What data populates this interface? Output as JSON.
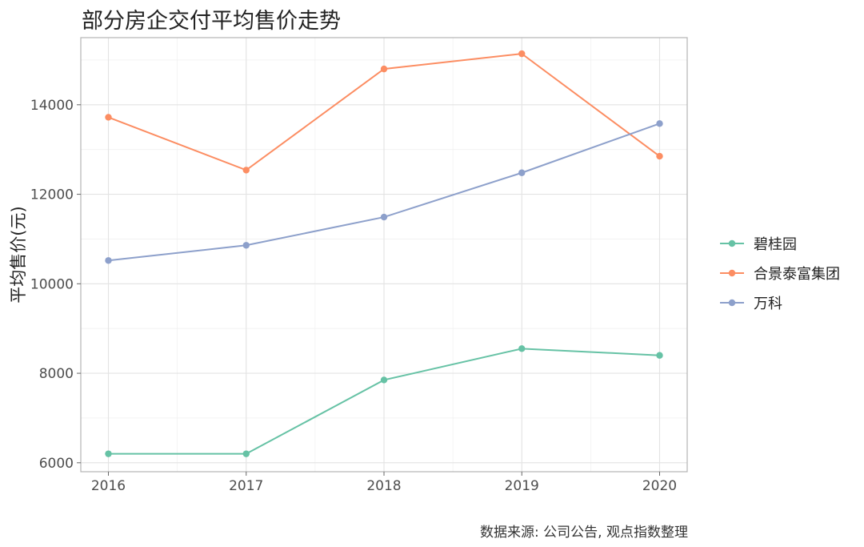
{
  "chart_data": {
    "type": "line",
    "title": "部分房企交付平均售价走势",
    "xlabel": "",
    "ylabel": "平均售价(元)",
    "caption": "数据来源: 公司公告, 观点指数整理",
    "x": [
      "2016",
      "2017",
      "2018",
      "2019",
      "2020"
    ],
    "ylim": [
      5800,
      15500
    ],
    "yticks": [
      6000,
      8000,
      10000,
      12000,
      14000
    ],
    "ytick_labels": [
      "6000",
      "8000",
      "10000",
      "12000",
      "14000"
    ],
    "grid": true,
    "legend_position": "right",
    "series": [
      {
        "name": "碧桂园",
        "color": "#66c2a5",
        "values": [
          6200,
          6200,
          7850,
          8550,
          8400
        ]
      },
      {
        "name": "合景泰富集团",
        "color": "#fc8d62",
        "values": [
          13720,
          12540,
          14800,
          15140,
          12850
        ]
      },
      {
        "name": "万科",
        "color": "#8da0cb",
        "values": [
          10520,
          10860,
          11490,
          12480,
          13580
        ]
      }
    ]
  }
}
